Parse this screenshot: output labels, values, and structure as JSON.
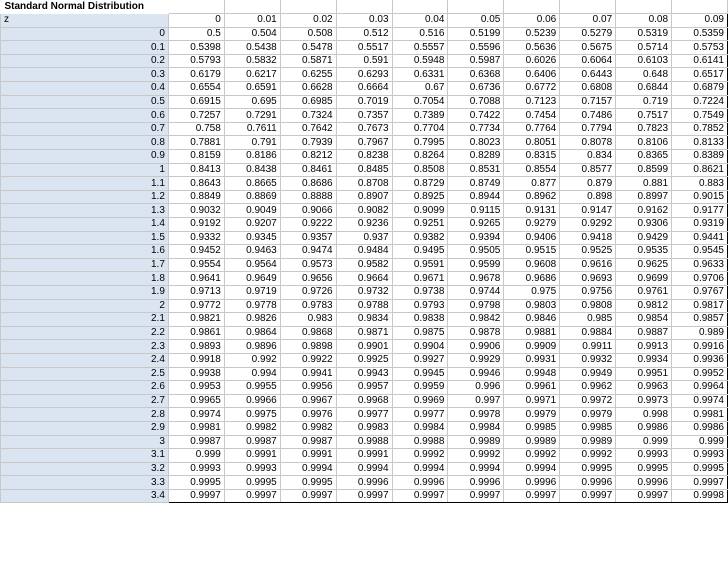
{
  "sheet": {
    "title": "Standard Normal Distribution",
    "z_header": "z",
    "col_headers": [
      "0",
      "0.01",
      "0.02",
      "0.03",
      "0.04",
      "0.05",
      "0.06",
      "0.07",
      "0.08",
      "0.09"
    ],
    "rows": [
      {
        "z": "0",
        "v": [
          "0.5",
          "0.504",
          "0.508",
          "0.512",
          "0.516",
          "0.5199",
          "0.5239",
          "0.5279",
          "0.5319",
          "0.5359"
        ]
      },
      {
        "z": "0.1",
        "v": [
          "0.5398",
          "0.5438",
          "0.5478",
          "0.5517",
          "0.5557",
          "0.5596",
          "0.5636",
          "0.5675",
          "0.5714",
          "0.5753"
        ]
      },
      {
        "z": "0.2",
        "v": [
          "0.5793",
          "0.5832",
          "0.5871",
          "0.591",
          "0.5948",
          "0.5987",
          "0.6026",
          "0.6064",
          "0.6103",
          "0.6141"
        ]
      },
      {
        "z": "0.3",
        "v": [
          "0.6179",
          "0.6217",
          "0.6255",
          "0.6293",
          "0.6331",
          "0.6368",
          "0.6406",
          "0.6443",
          "0.648",
          "0.6517"
        ]
      },
      {
        "z": "0.4",
        "v": [
          "0.6554",
          "0.6591",
          "0.6628",
          "0.6664",
          "0.67",
          "0.6736",
          "0.6772",
          "0.6808",
          "0.6844",
          "0.6879"
        ]
      },
      {
        "z": "0.5",
        "v": [
          "0.6915",
          "0.695",
          "0.6985",
          "0.7019",
          "0.7054",
          "0.7088",
          "0.7123",
          "0.7157",
          "0.719",
          "0.7224"
        ]
      },
      {
        "z": "0.6",
        "v": [
          "0.7257",
          "0.7291",
          "0.7324",
          "0.7357",
          "0.7389",
          "0.7422",
          "0.7454",
          "0.7486",
          "0.7517",
          "0.7549"
        ]
      },
      {
        "z": "0.7",
        "v": [
          "0.758",
          "0.7611",
          "0.7642",
          "0.7673",
          "0.7704",
          "0.7734",
          "0.7764",
          "0.7794",
          "0.7823",
          "0.7852"
        ]
      },
      {
        "z": "0.8",
        "v": [
          "0.7881",
          "0.791",
          "0.7939",
          "0.7967",
          "0.7995",
          "0.8023",
          "0.8051",
          "0.8078",
          "0.8106",
          "0.8133"
        ]
      },
      {
        "z": "0.9",
        "v": [
          "0.8159",
          "0.8186",
          "0.8212",
          "0.8238",
          "0.8264",
          "0.8289",
          "0.8315",
          "0.834",
          "0.8365",
          "0.8389"
        ]
      },
      {
        "z": "1",
        "v": [
          "0.8413",
          "0.8438",
          "0.8461",
          "0.8485",
          "0.8508",
          "0.8531",
          "0.8554",
          "0.8577",
          "0.8599",
          "0.8621"
        ]
      },
      {
        "z": "1.1",
        "v": [
          "0.8643",
          "0.8665",
          "0.8686",
          "0.8708",
          "0.8729",
          "0.8749",
          "0.877",
          "0.879",
          "0.881",
          "0.883"
        ]
      },
      {
        "z": "1.2",
        "v": [
          "0.8849",
          "0.8869",
          "0.8888",
          "0.8907",
          "0.8925",
          "0.8944",
          "0.8962",
          "0.898",
          "0.8997",
          "0.9015"
        ]
      },
      {
        "z": "1.3",
        "v": [
          "0.9032",
          "0.9049",
          "0.9066",
          "0.9082",
          "0.9099",
          "0.9115",
          "0.9131",
          "0.9147",
          "0.9162",
          "0.9177"
        ]
      },
      {
        "z": "1.4",
        "v": [
          "0.9192",
          "0.9207",
          "0.9222",
          "0.9236",
          "0.9251",
          "0.9265",
          "0.9279",
          "0.9292",
          "0.9306",
          "0.9319"
        ]
      },
      {
        "z": "1.5",
        "v": [
          "0.9332",
          "0.9345",
          "0.9357",
          "0.937",
          "0.9382",
          "0.9394",
          "0.9406",
          "0.9418",
          "0.9429",
          "0.9441"
        ]
      },
      {
        "z": "1.6",
        "v": [
          "0.9452",
          "0.9463",
          "0.9474",
          "0.9484",
          "0.9495",
          "0.9505",
          "0.9515",
          "0.9525",
          "0.9535",
          "0.9545"
        ]
      },
      {
        "z": "1.7",
        "v": [
          "0.9554",
          "0.9564",
          "0.9573",
          "0.9582",
          "0.9591",
          "0.9599",
          "0.9608",
          "0.9616",
          "0.9625",
          "0.9633"
        ]
      },
      {
        "z": "1.8",
        "v": [
          "0.9641",
          "0.9649",
          "0.9656",
          "0.9664",
          "0.9671",
          "0.9678",
          "0.9686",
          "0.9693",
          "0.9699",
          "0.9706"
        ]
      },
      {
        "z": "1.9",
        "v": [
          "0.9713",
          "0.9719",
          "0.9726",
          "0.9732",
          "0.9738",
          "0.9744",
          "0.975",
          "0.9756",
          "0.9761",
          "0.9767"
        ]
      },
      {
        "z": "2",
        "v": [
          "0.9772",
          "0.9778",
          "0.9783",
          "0.9788",
          "0.9793",
          "0.9798",
          "0.9803",
          "0.9808",
          "0.9812",
          "0.9817"
        ]
      },
      {
        "z": "2.1",
        "v": [
          "0.9821",
          "0.9826",
          "0.983",
          "0.9834",
          "0.9838",
          "0.9842",
          "0.9846",
          "0.985",
          "0.9854",
          "0.9857"
        ]
      },
      {
        "z": "2.2",
        "v": [
          "0.9861",
          "0.9864",
          "0.9868",
          "0.9871",
          "0.9875",
          "0.9878",
          "0.9881",
          "0.9884",
          "0.9887",
          "0.989"
        ]
      },
      {
        "z": "2.3",
        "v": [
          "0.9893",
          "0.9896",
          "0.9898",
          "0.9901",
          "0.9904",
          "0.9906",
          "0.9909",
          "0.9911",
          "0.9913",
          "0.9916"
        ]
      },
      {
        "z": "2.4",
        "v": [
          "0.9918",
          "0.992",
          "0.9922",
          "0.9925",
          "0.9927",
          "0.9929",
          "0.9931",
          "0.9932",
          "0.9934",
          "0.9936"
        ]
      },
      {
        "z": "2.5",
        "v": [
          "0.9938",
          "0.994",
          "0.9941",
          "0.9943",
          "0.9945",
          "0.9946",
          "0.9948",
          "0.9949",
          "0.9951",
          "0.9952"
        ]
      },
      {
        "z": "2.6",
        "v": [
          "0.9953",
          "0.9955",
          "0.9956",
          "0.9957",
          "0.9959",
          "0.996",
          "0.9961",
          "0.9962",
          "0.9963",
          "0.9964"
        ]
      },
      {
        "z": "2.7",
        "v": [
          "0.9965",
          "0.9966",
          "0.9967",
          "0.9968",
          "0.9969",
          "0.997",
          "0.9971",
          "0.9972",
          "0.9973",
          "0.9974"
        ]
      },
      {
        "z": "2.8",
        "v": [
          "0.9974",
          "0.9975",
          "0.9976",
          "0.9977",
          "0.9977",
          "0.9978",
          "0.9979",
          "0.9979",
          "0.998",
          "0.9981"
        ]
      },
      {
        "z": "2.9",
        "v": [
          "0.9981",
          "0.9982",
          "0.9982",
          "0.9983",
          "0.9984",
          "0.9984",
          "0.9985",
          "0.9985",
          "0.9986",
          "0.9986"
        ]
      },
      {
        "z": "3",
        "v": [
          "0.9987",
          "0.9987",
          "0.9987",
          "0.9988",
          "0.9988",
          "0.9989",
          "0.9989",
          "0.9989",
          "0.999",
          "0.999"
        ]
      },
      {
        "z": "3.1",
        "v": [
          "0.999",
          "0.9991",
          "0.9991",
          "0.9991",
          "0.9992",
          "0.9992",
          "0.9992",
          "0.9992",
          "0.9993",
          "0.9993"
        ]
      },
      {
        "z": "3.2",
        "v": [
          "0.9993",
          "0.9993",
          "0.9994",
          "0.9994",
          "0.9994",
          "0.9994",
          "0.9994",
          "0.9995",
          "0.9995",
          "0.9995"
        ]
      },
      {
        "z": "3.3",
        "v": [
          "0.9995",
          "0.9995",
          "0.9995",
          "0.9996",
          "0.9996",
          "0.9996",
          "0.9996",
          "0.9996",
          "0.9996",
          "0.9997"
        ]
      },
      {
        "z": "3.4",
        "v": [
          "0.9997",
          "0.9997",
          "0.9997",
          "0.9997",
          "0.9997",
          "0.9997",
          "0.9997",
          "0.9997",
          "0.9997",
          "0.9998"
        ]
      }
    ]
  }
}
